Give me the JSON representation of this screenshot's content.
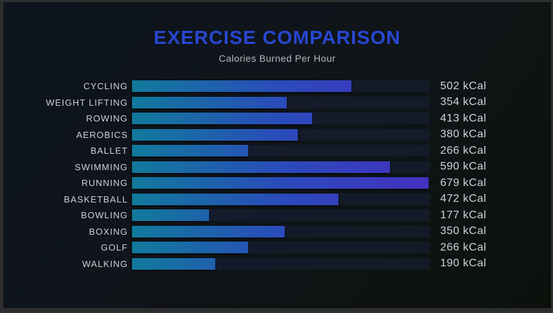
{
  "chart_data": {
    "type": "bar",
    "orientation": "horizontal",
    "title": "EXERCISE COMPARISON",
    "subtitle": "Calories Burned Per Hour",
    "categories": [
      "CYCLING",
      "WEIGHT LIFTING",
      "ROWING",
      "AEROBICS",
      "BALLET",
      "SWIMMING",
      "RUNNING",
      "BASKETBALL",
      "BOWLING",
      "BOXING",
      "GOLF",
      "WALKING"
    ],
    "values": [
      502,
      354,
      413,
      380,
      266,
      590,
      679,
      472,
      177,
      350,
      266,
      190
    ],
    "value_labels": [
      "502 kCal",
      "354 kCal",
      "413 kCal",
      "380 kCal",
      "266 kCal",
      "590 kCal",
      "679 kCal",
      "472 kCal",
      "177 kCal",
      "350 kCal",
      "266 kCal",
      "190 kCal"
    ],
    "unit": "kCal",
    "xlim": [
      0,
      679
    ],
    "grid": false,
    "legend": false,
    "colors": {
      "title": "#2847d2",
      "subtitle": "#b3b8bf",
      "category_label": "#ccd1d7",
      "value_label": "#ced4de",
      "bar_gradient_start": "#117a9c",
      "bar_gradient_mid": "#2b4abb",
      "bar_gradient_end": "#4431c0",
      "track": "rgba(27,38,68,0.42)",
      "background_top_left": "#0d141d",
      "background_bottom_right": "#0c110c",
      "frame": "#2e2e2e"
    }
  }
}
